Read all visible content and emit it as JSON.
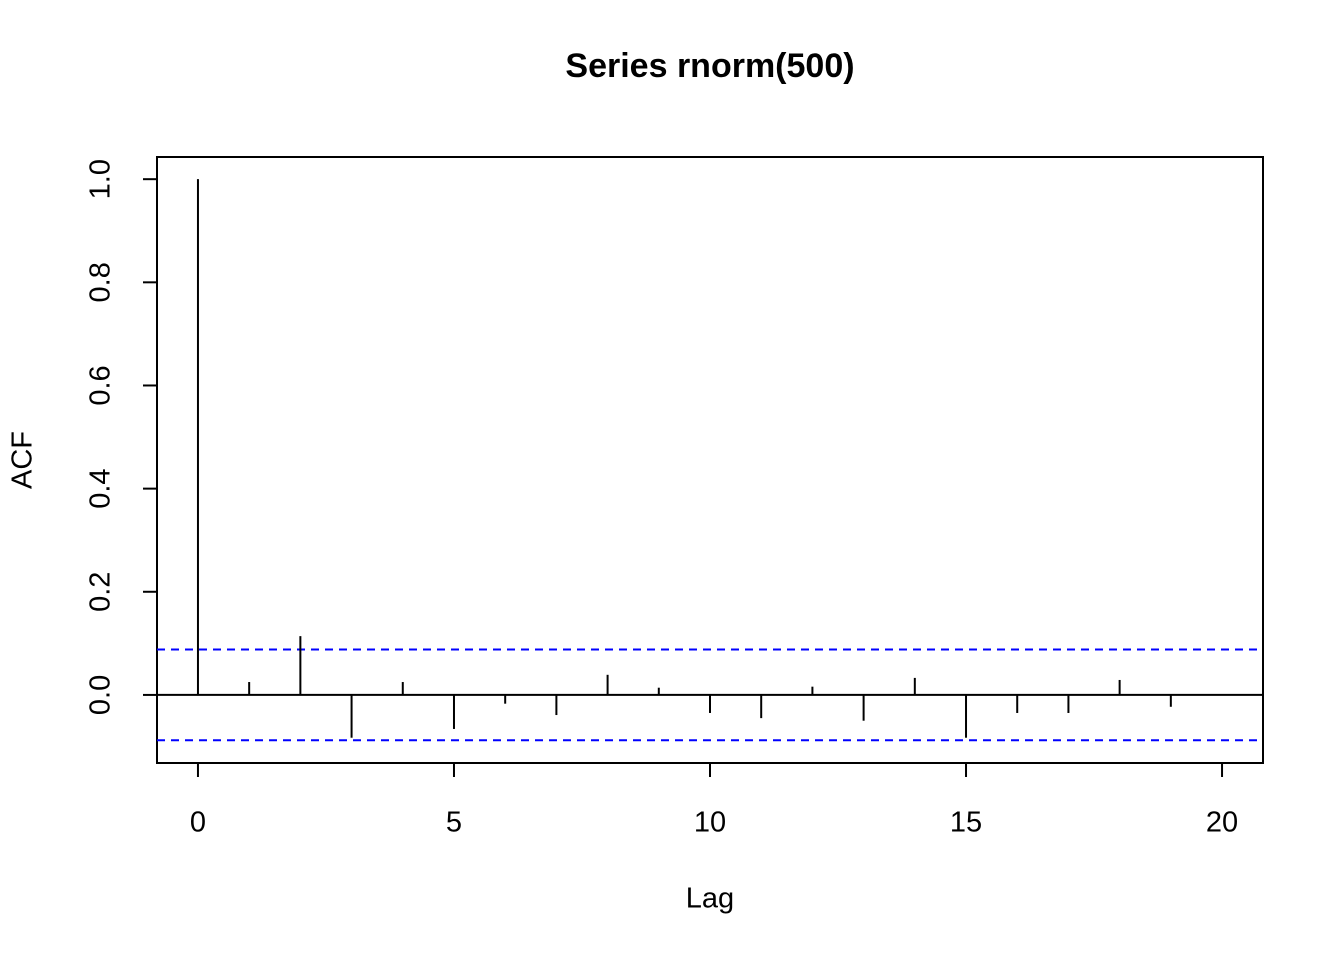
{
  "chart_data": {
    "type": "stem",
    "title": "Series  rnorm(500)",
    "xlabel": "Lag",
    "ylabel": "ACF",
    "x": [
      0,
      1,
      2,
      3,
      4,
      5,
      6,
      7,
      8,
      9,
      10,
      11,
      12,
      13,
      14,
      15,
      16,
      17,
      18,
      19
    ],
    "values": [
      1.0,
      0.025,
      0.114,
      -0.083,
      0.025,
      -0.066,
      -0.017,
      -0.039,
      0.039,
      0.014,
      -0.035,
      -0.045,
      0.016,
      -0.05,
      0.033,
      -0.083,
      -0.035,
      -0.035,
      0.029,
      -0.023
    ],
    "color": "#000000",
    "confidence_bounds": [
      0.088,
      -0.088
    ],
    "confidence_color": "#0000ff",
    "xlim": [
      -0.8,
      20.8
    ],
    "xticks": [
      0,
      5,
      10,
      15,
      20
    ],
    "ylim": [
      -0.132,
      1.043
    ],
    "yticks": [
      {
        "value": 0,
        "label": "0.0"
      },
      0.2,
      0.4,
      0.6,
      0.8,
      {
        "value": 1,
        "label": "1.0"
      }
    ]
  }
}
